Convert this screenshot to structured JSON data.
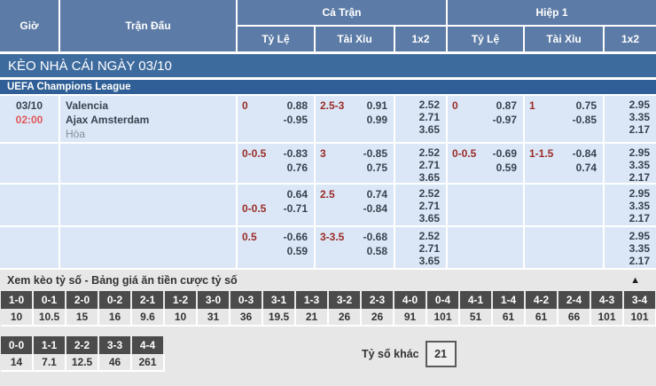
{
  "header": {
    "col_time": "Giờ",
    "col_match": "Trận Đấu",
    "group_fulltime": "Cả Trận",
    "group_firsthalf": "Hiệp 1",
    "sub_handicap": "Tỷ Lệ",
    "sub_overunder": "Tài Xỉu",
    "sub_1x2": "1x2"
  },
  "section_title": "KÈO NHÀ CÁI NGÀY 03/10",
  "league": "UEFA Champions League",
  "match": {
    "date": "03/10",
    "time": "02:00",
    "home": "Valencia",
    "away": "Ajax Amsterdam",
    "draw": "Hòa"
  },
  "odds_rows": [
    {
      "ft_handicap": [
        {
          "label": "0",
          "value": "0.88"
        },
        {
          "label": "",
          "value": "-0.95"
        }
      ],
      "ft_overunder": [
        {
          "label": "2.5-3",
          "value": "0.91"
        },
        {
          "label": "",
          "value": "0.99"
        }
      ],
      "ft_1x2": [
        "2.52",
        "2.71",
        "3.65"
      ],
      "h1_handicap": [
        {
          "label": "0",
          "value": "0.87"
        },
        {
          "label": "",
          "value": "-0.97"
        }
      ],
      "h1_overunder": [
        {
          "label": "1",
          "value": "0.75"
        },
        {
          "label": "",
          "value": "-0.85"
        }
      ],
      "h1_1x2": [
        "2.95",
        "3.35",
        "2.17"
      ]
    },
    {
      "ft_handicap": [
        {
          "label": "0-0.5",
          "value": "-0.83"
        },
        {
          "label": "",
          "value": "0.76"
        }
      ],
      "ft_overunder": [
        {
          "label": "3",
          "value": "-0.85"
        },
        {
          "label": "",
          "value": "0.75"
        }
      ],
      "ft_1x2": [
        "2.52",
        "2.71",
        "3.65"
      ],
      "h1_handicap": [
        {
          "label": "0-0.5",
          "value": "-0.69"
        },
        {
          "label": "",
          "value": "0.59"
        }
      ],
      "h1_overunder": [
        {
          "label": "1-1.5",
          "value": "-0.84"
        },
        {
          "label": "",
          "value": "0.74"
        }
      ],
      "h1_1x2": [
        "2.95",
        "3.35",
        "2.17"
      ]
    },
    {
      "ft_handicap": [
        {
          "label": "",
          "value": "0.64"
        },
        {
          "label": "0-0.5",
          "value": "-0.71"
        }
      ],
      "ft_overunder": [
        {
          "label": "2.5",
          "value": "0.74"
        },
        {
          "label": "",
          "value": "-0.84"
        }
      ],
      "ft_1x2": [
        "2.52",
        "2.71",
        "3.65"
      ],
      "h1_handicap": [
        {
          "label": "",
          "value": ""
        },
        {
          "label": "",
          "value": ""
        }
      ],
      "h1_overunder": [
        {
          "label": "",
          "value": ""
        },
        {
          "label": "",
          "value": ""
        }
      ],
      "h1_1x2": [
        "2.95",
        "3.35",
        "2.17"
      ]
    },
    {
      "ft_handicap": [
        {
          "label": "0.5",
          "value": "-0.66"
        },
        {
          "label": "",
          "value": "0.59"
        }
      ],
      "ft_overunder": [
        {
          "label": "3-3.5",
          "value": "-0.68"
        },
        {
          "label": "",
          "value": "0.58"
        }
      ],
      "ft_1x2": [
        "2.52",
        "2.71",
        "3.65"
      ],
      "h1_handicap": [
        {
          "label": "",
          "value": ""
        },
        {
          "label": "",
          "value": ""
        }
      ],
      "h1_overunder": [
        {
          "label": "",
          "value": ""
        },
        {
          "label": "",
          "value": ""
        }
      ],
      "h1_1x2": [
        "2.95",
        "3.35",
        "2.17"
      ]
    }
  ],
  "score_section": {
    "title": "Xem kèo tỷ số - Bảng giá ăn tiền cược tỷ số",
    "collapse_icon": "▲",
    "other_label": "Tỷ số khác",
    "other_value": "21",
    "row1": [
      {
        "score": "1-0",
        "odds": "10"
      },
      {
        "score": "0-1",
        "odds": "10.5"
      },
      {
        "score": "2-0",
        "odds": "15"
      },
      {
        "score": "0-2",
        "odds": "16"
      },
      {
        "score": "2-1",
        "odds": "9.6"
      },
      {
        "score": "1-2",
        "odds": "10"
      },
      {
        "score": "3-0",
        "odds": "31"
      },
      {
        "score": "0-3",
        "odds": "36"
      },
      {
        "score": "3-1",
        "odds": "19.5"
      },
      {
        "score": "1-3",
        "odds": "21"
      },
      {
        "score": "3-2",
        "odds": "26"
      },
      {
        "score": "2-3",
        "odds": "26"
      },
      {
        "score": "4-0",
        "odds": "91"
      },
      {
        "score": "0-4",
        "odds": "101"
      },
      {
        "score": "4-1",
        "odds": "51"
      },
      {
        "score": "1-4",
        "odds": "61"
      },
      {
        "score": "4-2",
        "odds": "61"
      },
      {
        "score": "2-4",
        "odds": "66"
      },
      {
        "score": "4-3",
        "odds": "101"
      },
      {
        "score": "3-4",
        "odds": "101"
      }
    ],
    "row2": [
      {
        "score": "0-0",
        "odds": "14"
      },
      {
        "score": "1-1",
        "odds": "7.1"
      },
      {
        "score": "2-2",
        "odds": "12.5"
      },
      {
        "score": "3-3",
        "odds": "46"
      },
      {
        "score": "4-4",
        "odds": "261"
      }
    ]
  },
  "colors": {
    "header_blue": "#5c7ba6",
    "title_bar_blue": "#3e6b9e",
    "league_bar_blue": "#2f5f96",
    "row_light_blue": "#dbe7f7",
    "handicap_red": "#9a2d26",
    "time_red": "#e05858",
    "score_box_gray": "#4b4b4b",
    "section_gray": "#e7e7e7"
  }
}
